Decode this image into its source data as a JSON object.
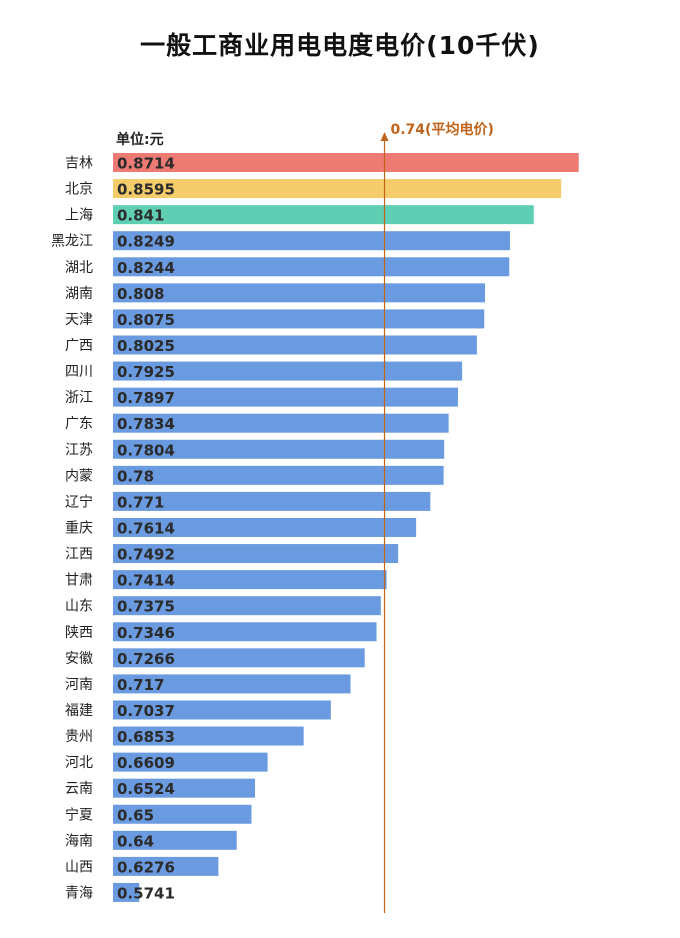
{
  "chart_data": {
    "type": "bar",
    "orientation": "horizontal",
    "title": "一般工商业用电电度电价(10千伏)",
    "unit_label": "单位:元",
    "categories": [
      "吉林",
      "北京",
      "上海",
      "黑龙江",
      "湖北",
      "湖南",
      "天津",
      "广西",
      "四川",
      "浙江",
      "广东",
      "江苏",
      "内蒙",
      "辽宁",
      "重庆",
      "江西",
      "甘肃",
      "山东",
      "陕西",
      "安徽",
      "河南",
      "福建",
      "贵州",
      "河北",
      "云南",
      "宁夏",
      "海南",
      "山西",
      "青海"
    ],
    "values": [
      0.8714,
      0.8595,
      0.841,
      0.8249,
      0.8244,
      0.808,
      0.8075,
      0.8025,
      0.7925,
      0.7897,
      0.7834,
      0.7804,
      0.78,
      0.771,
      0.7614,
      0.7492,
      0.7414,
      0.7375,
      0.7346,
      0.7266,
      0.717,
      0.7037,
      0.6853,
      0.6609,
      0.6524,
      0.65,
      0.64,
      0.6276,
      0.5741
    ],
    "value_labels": [
      "0.8714",
      "0.8595",
      "0.841",
      "0.8249",
      "0.8244",
      "0.808",
      "0.8075",
      "0.8025",
      "0.7925",
      "0.7897",
      "0.7834",
      "0.7804",
      "0.78",
      "0.771",
      "0.7614",
      "0.7492",
      "0.7414",
      "0.7375",
      "0.7346",
      "0.7266",
      "0.717",
      "0.7037",
      "0.6853",
      "0.6609",
      "0.6524",
      "0.65",
      "0.64",
      "0.6276",
      "0.5741"
    ],
    "reference_line": {
      "value": 0.74,
      "label": "0.74(平均电价)"
    },
    "colors": {
      "first": "#ee7b73",
      "second": "#f4cc6a",
      "third": "#5fcfb4",
      "default": "#6a9be0",
      "reference_line": "#c0641c"
    }
  }
}
